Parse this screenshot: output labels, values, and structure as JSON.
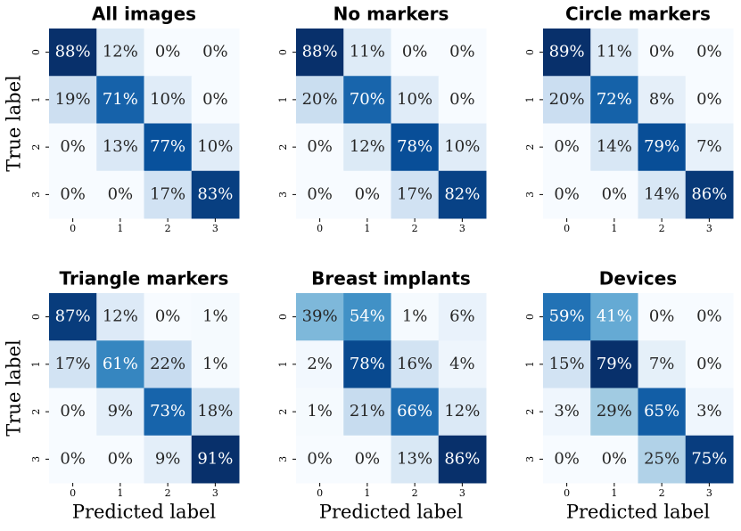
{
  "chart_data": [
    {
      "type": "heatmap",
      "title": "All images",
      "colormap": "Blues",
      "y_label": "True label",
      "x_categories": [
        "0",
        "1",
        "2",
        "3"
      ],
      "y_categories": [
        "0",
        "1",
        "2",
        "3"
      ],
      "values": [
        [
          88,
          12,
          0,
          0
        ],
        [
          19,
          71,
          10,
          0
        ],
        [
          0,
          13,
          77,
          10
        ],
        [
          0,
          0,
          17,
          83
        ]
      ],
      "value_labels": [
        [
          "88%",
          "12%",
          "0%",
          "0%"
        ],
        [
          "19%",
          "71%",
          "10%",
          "0%"
        ],
        [
          "0%",
          "13%",
          "77%",
          "10%"
        ],
        [
          "0%",
          "0%",
          "17%",
          "83%"
        ]
      ]
    },
    {
      "type": "heatmap",
      "title": "No markers",
      "colormap": "Blues",
      "x_categories": [
        "0",
        "1",
        "2",
        "3"
      ],
      "y_categories": [
        "0",
        "1",
        "2",
        "3"
      ],
      "values": [
        [
          88,
          11,
          0,
          0
        ],
        [
          20,
          70,
          10,
          0
        ],
        [
          0,
          12,
          78,
          10
        ],
        [
          0,
          0,
          17,
          82
        ]
      ],
      "value_labels": [
        [
          "88%",
          "11%",
          "0%",
          "0%"
        ],
        [
          "20%",
          "70%",
          "10%",
          "0%"
        ],
        [
          "0%",
          "12%",
          "78%",
          "10%"
        ],
        [
          "0%",
          "0%",
          "17%",
          "82%"
        ]
      ]
    },
    {
      "type": "heatmap",
      "title": "Circle markers",
      "colormap": "Blues",
      "x_categories": [
        "0",
        "1",
        "2",
        "3"
      ],
      "y_categories": [
        "0",
        "1",
        "2",
        "3"
      ],
      "values": [
        [
          89,
          11,
          0,
          0
        ],
        [
          20,
          72,
          8,
          0
        ],
        [
          0,
          14,
          79,
          7
        ],
        [
          0,
          0,
          14,
          86
        ]
      ],
      "value_labels": [
        [
          "89%",
          "11%",
          "0%",
          "0%"
        ],
        [
          "20%",
          "72%",
          "8%",
          "0%"
        ],
        [
          "0%",
          "14%",
          "79%",
          "7%"
        ],
        [
          "0%",
          "0%",
          "14%",
          "86%"
        ]
      ]
    },
    {
      "type": "heatmap",
      "title": "Triangle markers",
      "colormap": "Blues",
      "y_label": "True label",
      "x_label": "Predicted label",
      "x_categories": [
        "0",
        "1",
        "2",
        "3"
      ],
      "y_categories": [
        "0",
        "1",
        "2",
        "3"
      ],
      "values": [
        [
          87,
          12,
          0,
          1
        ],
        [
          17,
          61,
          22,
          1
        ],
        [
          0,
          9,
          73,
          18
        ],
        [
          0,
          0,
          9,
          91
        ]
      ],
      "value_labels": [
        [
          "87%",
          "12%",
          "0%",
          "1%"
        ],
        [
          "17%",
          "61%",
          "22%",
          "1%"
        ],
        [
          "0%",
          "9%",
          "73%",
          "18%"
        ],
        [
          "0%",
          "0%",
          "9%",
          "91%"
        ]
      ]
    },
    {
      "type": "heatmap",
      "title": "Breast implants",
      "colormap": "Blues",
      "x_label": "Predicted label",
      "x_categories": [
        "0",
        "1",
        "2",
        "3"
      ],
      "y_categories": [
        "0",
        "1",
        "2",
        "3"
      ],
      "values": [
        [
          39,
          54,
          1,
          6
        ],
        [
          2,
          78,
          16,
          4
        ],
        [
          1,
          21,
          66,
          12
        ],
        [
          0,
          0,
          13,
          86
        ]
      ],
      "value_labels": [
        [
          "39%",
          "54%",
          "1%",
          "6%"
        ],
        [
          "2%",
          "78%",
          "16%",
          "4%"
        ],
        [
          "1%",
          "21%",
          "66%",
          "12%"
        ],
        [
          "0%",
          "0%",
          "13%",
          "86%"
        ]
      ]
    },
    {
      "type": "heatmap",
      "title": "Devices",
      "colormap": "Blues",
      "x_label": "Predicted label",
      "x_categories": [
        "0",
        "1",
        "2",
        "3"
      ],
      "y_categories": [
        "0",
        "1",
        "2",
        "3"
      ],
      "values": [
        [
          59,
          41,
          0,
          0
        ],
        [
          15,
          79,
          7,
          0
        ],
        [
          3,
          29,
          65,
          3
        ],
        [
          0,
          0,
          25,
          75
        ]
      ],
      "value_labels": [
        [
          "59%",
          "41%",
          "0%",
          "0%"
        ],
        [
          "15%",
          "79%",
          "7%",
          "0%"
        ],
        [
          "3%",
          "29%",
          "65%",
          "3%"
        ],
        [
          "0%",
          "0%",
          "25%",
          "75%"
        ]
      ]
    }
  ]
}
